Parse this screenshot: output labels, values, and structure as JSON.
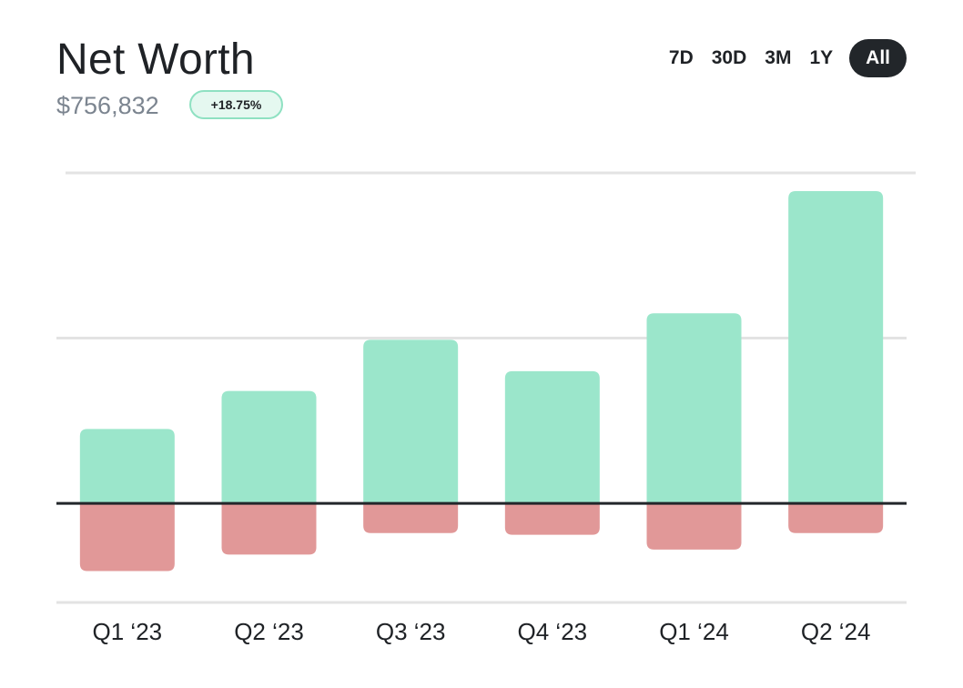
{
  "header": {
    "title": "Net Worth",
    "value": "$756,832",
    "change": "+18.75%"
  },
  "range": {
    "options": [
      "7D",
      "30D",
      "3M",
      "1Y",
      "All"
    ],
    "selected": "All"
  },
  "colors": {
    "positive": "#9be6cb",
    "negative": "#e19898",
    "zero_line": "#22262a",
    "grid": "#e3e3e3",
    "active_tab": "#22262a"
  },
  "chart_data": {
    "type": "bar",
    "stacked": true,
    "categories": [
      "Q1 ‘23",
      "Q2 ‘23",
      "Q3 ‘23",
      "Q4 ‘23",
      "Q1 ‘24",
      "Q2 ‘24"
    ],
    "series": [
      {
        "values": [
          0.45,
          0.68,
          0.99,
          0.8,
          1.15,
          1.89
        ]
      },
      {
        "values": [
          -0.41,
          -0.31,
          -0.18,
          -0.19,
          -0.28,
          -0.18
        ]
      }
    ],
    "ylim": [
      -0.6,
      2.0
    ],
    "gridlines": [
      2.0,
      1.0,
      -0.6
    ],
    "grid": true,
    "legend": "none"
  }
}
